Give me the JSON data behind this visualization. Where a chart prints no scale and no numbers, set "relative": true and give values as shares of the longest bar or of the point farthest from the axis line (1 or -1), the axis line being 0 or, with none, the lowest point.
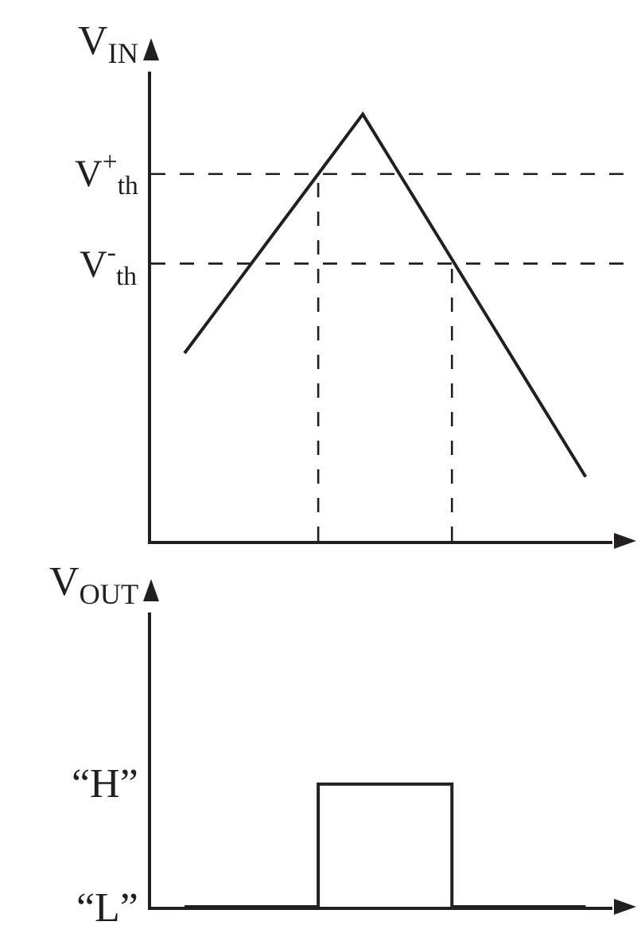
{
  "chart_data": [
    {
      "type": "line",
      "relative": true,
      "ylabel": "V$_{IN}$",
      "categories": [
        null,
        null,
        null,
        null,
        null,
        null,
        null,
        null,
        null,
        null
      ],
      "series": [
        {
          "color": "#231f20",
          "values": [
            0.44,
            0.58,
            0.72,
            0.86,
            1,
            0.83,
            0.66,
            0.49,
            0.32,
            0.15
          ]
        }
      ],
      "ref_lines": [
        {
          "axis": "y",
          "value": 0.86,
          "label": "V$^{+}$$_{th}$",
          "line_style": "dashed"
        },
        {
          "axis": "y",
          "value": 0.65,
          "label": "V$^{-}$$_{th}$",
          "line_style": "dashed"
        }
      ]
    },
    {
      "type": "step",
      "ylabel": "V$_{OUT}$",
      "categories": [
        null,
        null,
        null,
        null,
        null,
        null,
        null,
        null,
        null,
        null
      ],
      "values": [
        0,
        0,
        0,
        1,
        1,
        1,
        0,
        0,
        0,
        0
      ],
      "color": "#231f20",
      "relative": true,
      "annotations": [
        "“H”",
        "“L”"
      ]
    }
  ]
}
